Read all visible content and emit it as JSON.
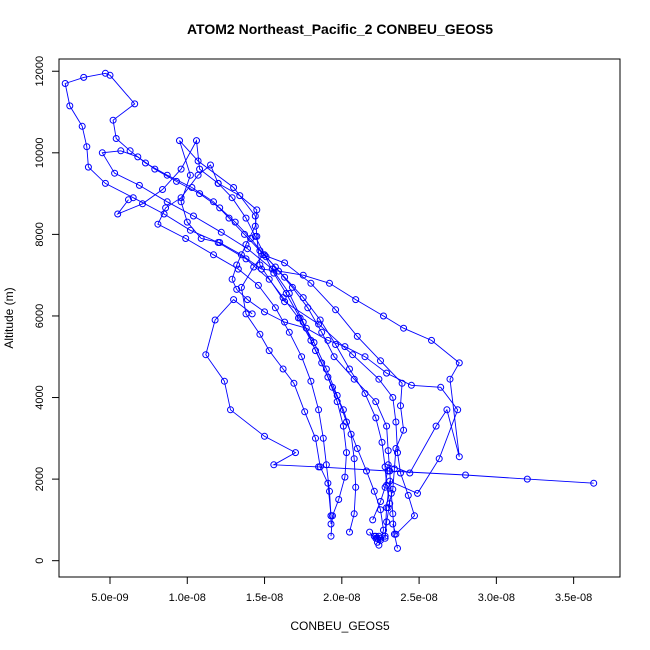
{
  "chart_data": {
    "type": "line",
    "title": "ATOM2 Northeast_Pacific_2 CONBEU_GEOS5",
    "xlabel": "CONBEU_GEOS5",
    "ylabel": "Altitude (m)",
    "xlim": [
      1.7e-09,
      3.8e-08
    ],
    "ylim": [
      -400,
      12300
    ],
    "x_ticks": [
      5e-09,
      1e-08,
      1.5e-08,
      2e-08,
      2.5e-08,
      3e-08,
      3.5e-08
    ],
    "x_tick_labels": [
      "5.0e-09",
      "1.0e-08",
      "1.5e-08",
      "2.0e-08",
      "2.5e-08",
      "3.0e-08",
      "3.5e-08"
    ],
    "y_ticks": [
      0,
      2000,
      4000,
      6000,
      8000,
      10000,
      12000
    ],
    "y_tick_labels": [
      "0",
      "2000",
      "4000",
      "6000",
      "8000",
      "10000",
      "12000"
    ],
    "grid": false,
    "legend": "none",
    "marker": "open-circle",
    "color": "#0000ff",
    "series": [
      {
        "points": [
          [
            2.36e-08,
            300
          ],
          [
            2.34e-08,
            650
          ],
          [
            2.33e-08,
            1150
          ],
          [
            2.32e-08,
            1650
          ],
          [
            2.31e-08,
            2200
          ],
          [
            2.3e-08,
            2700
          ],
          [
            2.29e-08,
            3300
          ],
          [
            2.22e-08,
            3900
          ],
          [
            2.08e-08,
            4450
          ],
          [
            1.95e-08,
            5000
          ],
          [
            1.87e-08,
            5600
          ],
          [
            1.78e-08,
            6200
          ],
          [
            1.68e-08,
            6700
          ],
          [
            1.57e-08,
            7200
          ],
          [
            1.47e-08,
            7600
          ],
          [
            1.37e-08,
            8000
          ],
          [
            1.27e-08,
            8400
          ],
          [
            1.17e-08,
            8800
          ],
          [
            1.03e-08,
            9150
          ],
          [
            8.7e-09,
            9450
          ],
          [
            7.3e-09,
            9750
          ],
          [
            6.3e-09,
            10050
          ],
          [
            5.4e-09,
            10350
          ],
          [
            5.2e-09,
            10800
          ],
          [
            6.6e-09,
            11200
          ],
          [
            5e-09,
            11900
          ],
          [
            4.7e-09,
            11950
          ],
          [
            3.3e-09,
            11850
          ],
          [
            2.1e-09,
            11700
          ],
          [
            2.4e-09,
            11150
          ],
          [
            3.2e-09,
            10650
          ],
          [
            3.5e-09,
            10150
          ],
          [
            3.6e-09,
            9650
          ],
          [
            4.7e-09,
            9250
          ],
          [
            6.5e-09,
            8900
          ],
          [
            8.5e-09,
            8500
          ],
          [
            1.02e-08,
            8100
          ],
          [
            1.2e-08,
            7800
          ],
          [
            1.38e-08,
            7400
          ],
          [
            1.53e-08,
            6900
          ],
          [
            1.62e-08,
            6450
          ],
          [
            1.72e-08,
            5950
          ],
          [
            1.8e-08,
            5400
          ],
          [
            1.87e-08,
            4850
          ],
          [
            1.94e-08,
            4250
          ],
          [
            2.01e-08,
            3700
          ],
          [
            2.06e-08,
            3100
          ],
          [
            2.08e-08,
            2500
          ],
          [
            2.09e-08,
            1800
          ],
          [
            2.08e-08,
            1150
          ],
          [
            2.05e-08,
            700
          ]
        ]
      },
      {
        "points": [
          [
            2.28e-08,
            550
          ],
          [
            2.29e-08,
            950
          ],
          [
            2.31e-08,
            1400
          ],
          [
            2.29e-08,
            1850
          ],
          [
            2.28e-08,
            2300
          ],
          [
            2.26e-08,
            2900
          ],
          [
            2.22e-08,
            3500
          ],
          [
            2.15e-08,
            4100
          ],
          [
            2.05e-08,
            4700
          ],
          [
            1.96e-08,
            5300
          ],
          [
            1.86e-08,
            5900
          ],
          [
            1.75e-08,
            6450
          ],
          [
            1.63e-08,
            6950
          ],
          [
            1.51e-08,
            7450
          ],
          [
            1.41e-08,
            7900
          ],
          [
            1.31e-08,
            8300
          ],
          [
            1.21e-08,
            8650
          ],
          [
            1.08e-08,
            9000
          ],
          [
            9.3e-09,
            9300
          ],
          [
            7.9e-09,
            9600
          ],
          [
            6.8e-09,
            9900
          ],
          [
            5.7e-09,
            10050
          ],
          [
            4.5e-09,
            10000
          ],
          [
            5.3e-09,
            9500
          ],
          [
            6.9e-09,
            9200
          ],
          [
            8.7e-09,
            8800
          ],
          [
            1.04e-08,
            8450
          ],
          [
            1.22e-08,
            8050
          ],
          [
            1.39e-08,
            7650
          ],
          [
            1.55e-08,
            7150
          ],
          [
            1.66e-08,
            6550
          ],
          [
            1.75e-08,
            5850
          ],
          [
            1.83e-08,
            5150
          ],
          [
            1.91e-08,
            4500
          ],
          [
            1.97e-08,
            3900
          ],
          [
            2.01e-08,
            3300
          ],
          [
            2.03e-08,
            2650
          ],
          [
            2.02e-08,
            2050
          ],
          [
            1.98e-08,
            1500
          ],
          [
            1.94e-08,
            1100
          ],
          [
            1.93e-08,
            600
          ]
        ]
      },
      {
        "points": [
          [
            2.24e-08,
            380
          ],
          [
            2.27e-08,
            750
          ],
          [
            2.25e-08,
            1250
          ],
          [
            2.21e-08,
            1700
          ],
          [
            2.16e-08,
            2200
          ],
          [
            2.1e-08,
            2750
          ],
          [
            2.03e-08,
            3400
          ],
          [
            1.97e-08,
            4050
          ],
          [
            1.9e-08,
            4700
          ],
          [
            1.82e-08,
            5350
          ],
          [
            1.73e-08,
            5950
          ],
          [
            1.64e-08,
            6550
          ],
          [
            1.56e-08,
            7050
          ],
          [
            1.5e-08,
            7500
          ],
          [
            1.44e-08,
            7950
          ],
          [
            1.38e-08,
            8400
          ],
          [
            1.29e-08,
            8900
          ],
          [
            1.2e-08,
            9250
          ],
          [
            1.15e-08,
            9700
          ],
          [
            1.07e-08,
            9450
          ],
          [
            9.6e-09,
            8900
          ],
          [
            8.6e-09,
            8650
          ],
          [
            8.1e-09,
            8250
          ],
          [
            9.9e-09,
            7900
          ],
          [
            1.17e-08,
            7500
          ],
          [
            1.33e-08,
            7150
          ],
          [
            1.46e-08,
            6750
          ],
          [
            1.57e-08,
            6200
          ],
          [
            1.66e-08,
            5600
          ],
          [
            1.74e-08,
            5000
          ],
          [
            1.8e-08,
            4400
          ],
          [
            1.85e-08,
            3700
          ],
          [
            1.88e-08,
            3000
          ],
          [
            1.9e-08,
            2350
          ],
          [
            1.92e-08,
            1700
          ],
          [
            1.93e-08,
            1100
          ],
          [
            1.93e-08,
            900
          ]
        ]
      },
      {
        "points": [
          [
            2.3e-08,
            1300
          ],
          [
            2.33e-08,
            1750
          ],
          [
            2.34e-08,
            2250
          ],
          [
            2.35e-08,
            2750
          ],
          [
            2.4e-08,
            3200
          ],
          [
            2.38e-08,
            3800
          ],
          [
            2.39e-08,
            4350
          ],
          [
            2.25e-08,
            4900
          ],
          [
            2.1e-08,
            5500
          ],
          [
            1.96e-08,
            6150
          ],
          [
            1.8e-08,
            6800
          ],
          [
            1.63e-08,
            7300
          ],
          [
            1.49e-08,
            7500
          ],
          [
            1.43e-08,
            7200
          ],
          [
            1.35e-08,
            6700
          ],
          [
            1.38e-08,
            6050
          ],
          [
            1.47e-08,
            5550
          ],
          [
            1.53e-08,
            5150
          ],
          [
            1.62e-08,
            4700
          ],
          [
            1.69e-08,
            4350
          ],
          [
            1.76e-08,
            3650
          ],
          [
            1.83e-08,
            3000
          ],
          [
            1.86e-08,
            2300
          ],
          [
            1.91e-08,
            1900
          ],
          [
            1.93e-08,
            1100
          ]
        ]
      },
      {
        "points": [
          [
            2.2e-08,
            1000
          ],
          [
            2.25e-08,
            1450
          ],
          [
            2.28e-08,
            1800
          ],
          [
            2.3e-08,
            2350
          ],
          [
            2.44e-08,
            2150
          ],
          [
            2.61e-08,
            3300
          ],
          [
            2.68e-08,
            3700
          ],
          [
            2.76e-08,
            2550
          ],
          [
            2.7e-08,
            4450
          ],
          [
            2.76e-08,
            4850
          ],
          [
            2.58e-08,
            5400
          ],
          [
            2.4e-08,
            5700
          ],
          [
            2.27e-08,
            6000
          ],
          [
            2.09e-08,
            6400
          ],
          [
            1.92e-08,
            6800
          ],
          [
            1.75e-08,
            7000
          ],
          [
            1.59e-08,
            7100
          ],
          [
            1.48e-08,
            7150
          ],
          [
            1.35e-08,
            7500
          ],
          [
            1.21e-08,
            7800
          ],
          [
            1.09e-08,
            7900
          ],
          [
            1e-08,
            8300
          ],
          [
            9.6e-09,
            8800
          ],
          [
            1.02e-08,
            9450
          ],
          [
            9.5e-09,
            10300
          ],
          [
            1.07e-08,
            9800
          ],
          [
            1.3e-08,
            9150
          ],
          [
            1.44e-08,
            8450
          ],
          [
            1.45e-08,
            7950
          ],
          [
            1.47e-08,
            7250
          ],
          [
            1.63e-08,
            6350
          ],
          [
            1.85e-08,
            5800
          ],
          [
            2.07e-08,
            5050
          ],
          [
            2.24e-08,
            4450
          ],
          [
            2.33e-08,
            4000
          ],
          [
            2.35e-08,
            3400
          ],
          [
            2.36e-08,
            2650
          ],
          [
            2.38e-08,
            2150
          ],
          [
            2.43e-08,
            1600
          ],
          [
            2.47e-08,
            1100
          ],
          [
            2.35e-08,
            650
          ],
          [
            2.33e-08,
            900
          ]
        ]
      },
      {
        "points": [
          [
            2.18e-08,
            700
          ],
          [
            2.23e-08,
            450
          ],
          [
            2.25e-08,
            500
          ],
          [
            2.28e-08,
            600
          ],
          [
            2.29e-08,
            1300
          ],
          [
            2.31e-08,
            1950
          ],
          [
            2.49e-08,
            1650
          ],
          [
            2.63e-08,
            2500
          ],
          [
            2.75e-08,
            3700
          ],
          [
            2.64e-08,
            4250
          ],
          [
            2.45e-08,
            4300
          ],
          [
            2.29e-08,
            4600
          ],
          [
            2.15e-08,
            5000
          ],
          [
            2.02e-08,
            5250
          ],
          [
            1.91e-08,
            5400
          ],
          [
            1.77e-08,
            5700
          ],
          [
            1.63e-08,
            5850
          ],
          [
            1.5e-08,
            6100
          ],
          [
            1.39e-08,
            6400
          ],
          [
            1.32e-08,
            6650
          ],
          [
            1.29e-08,
            6900
          ],
          [
            1.32e-08,
            7250
          ],
          [
            1.38e-08,
            7750
          ],
          [
            1.44e-08,
            8200
          ],
          [
            1.45e-08,
            8600
          ],
          [
            1.34e-08,
            8950
          ],
          [
            1.2e-08,
            9250
          ],
          [
            1.08e-08,
            9600
          ],
          [
            1.06e-08,
            10300
          ],
          [
            9.6e-09,
            9600
          ],
          [
            8.4e-09,
            9100
          ],
          [
            7.1e-09,
            8750
          ],
          [
            5.5e-09,
            8500
          ],
          [
            6.2e-09,
            8850
          ]
        ]
      },
      {
        "points": [
          [
            1.42e-08,
            6050
          ],
          [
            1.3e-08,
            6400
          ],
          [
            1.18e-08,
            5900
          ],
          [
            1.12e-08,
            5050
          ],
          [
            1.24e-08,
            4400
          ],
          [
            1.28e-08,
            3700
          ],
          [
            1.5e-08,
            3050
          ],
          [
            1.7e-08,
            2650
          ],
          [
            1.56e-08,
            2350
          ],
          [
            1.85e-08,
            2300
          ],
          [
            2.3e-08,
            2200
          ],
          [
            2.8e-08,
            2100
          ],
          [
            3.2e-08,
            2000
          ],
          [
            3.63e-08,
            1900
          ]
        ]
      },
      {
        "points": [
          [
            2.23e-08,
            550
          ],
          [
            2.24e-08,
            600
          ],
          [
            2.22e-08,
            550
          ],
          [
            2.21e-08,
            600
          ],
          [
            2.22e-08,
            600
          ],
          [
            2.25e-08,
            550
          ]
        ]
      }
    ]
  }
}
